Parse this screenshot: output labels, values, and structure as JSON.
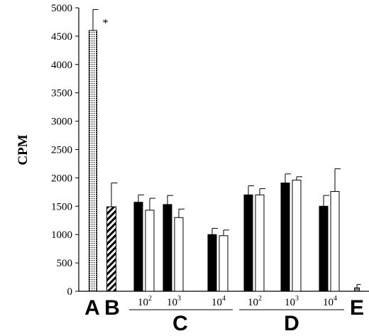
{
  "chart_data": {
    "type": "bar",
    "title": "",
    "xlabel": "",
    "ylabel": "CPM",
    "ylim": [
      0,
      5000
    ],
    "yticks": [
      "0",
      "500",
      "1000",
      "1500",
      "2000",
      "2500",
      "3000",
      "3500",
      "4000",
      "4500",
      "5000"
    ],
    "grid": false,
    "legend": "none",
    "groups": [
      {
        "label": "A",
        "bars": [
          {
            "value": 4600,
            "error": 370,
            "fill": "dotted",
            "annotation": "*"
          }
        ]
      },
      {
        "label": "B",
        "bars": [
          {
            "value": 1490,
            "error": 420,
            "fill": "hatched"
          }
        ]
      },
      {
        "label": "C",
        "subgroups": [
          {
            "base": "10",
            "exponent": "2",
            "bars": [
              {
                "value": 1570,
                "error": 130,
                "fill": "black"
              },
              {
                "value": 1430,
                "error": 210,
                "fill": "white"
              }
            ]
          },
          {
            "base": "10",
            "exponent": "3",
            "bars": [
              {
                "value": 1530,
                "error": 160,
                "fill": "black"
              },
              {
                "value": 1300,
                "error": 150,
                "fill": "white"
              }
            ]
          },
          {
            "base": "10",
            "exponent": "4",
            "bars": [
              {
                "value": 1000,
                "error": 110,
                "fill": "black"
              },
              {
                "value": 980,
                "error": 100,
                "fill": "white"
              }
            ]
          }
        ]
      },
      {
        "label": "D",
        "subgroups": [
          {
            "base": "10",
            "exponent": "2",
            "bars": [
              {
                "value": 1700,
                "error": 160,
                "fill": "black"
              },
              {
                "value": 1700,
                "error": 110,
                "fill": "white"
              }
            ]
          },
          {
            "base": "10",
            "exponent": "3",
            "bars": [
              {
                "value": 1910,
                "error": 160,
                "fill": "black"
              },
              {
                "value": 1960,
                "error": 60,
                "fill": "white"
              }
            ]
          },
          {
            "base": "10",
            "exponent": "4",
            "bars": [
              {
                "value": 1500,
                "error": 190,
                "fill": "black"
              },
              {
                "value": 1760,
                "error": 400,
                "fill": "white"
              }
            ]
          }
        ]
      },
      {
        "label": "E",
        "bars": [
          {
            "value": 60,
            "error": 60,
            "fill": "gray"
          }
        ]
      }
    ],
    "colors": {
      "axis": "#000000",
      "black_bar": "#000000",
      "white_bar": "#ffffff",
      "gray_bar": "#888888"
    }
  }
}
